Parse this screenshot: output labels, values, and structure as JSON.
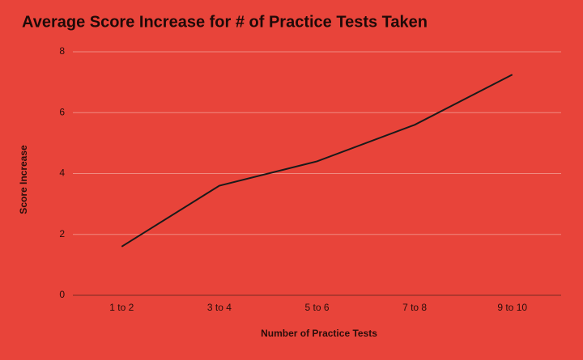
{
  "chart_data": {
    "type": "line",
    "title": "Average Score Increase for # of Practice Tests Taken",
    "x_label": "Number of Practice Tests",
    "y_label": "Score Increase",
    "categories": [
      "1 to 2",
      "3 to 4",
      "5 to 6",
      "7 to 8",
      "9 to 10"
    ],
    "values": [
      1.6,
      3.6,
      4.4,
      5.6,
      7.25
    ],
    "color": "#1a1a1a",
    "background": "#e8443a",
    "ylim": [
      0,
      8
    ],
    "yticks": [
      0,
      2,
      4,
      6,
      8
    ],
    "grid": true
  }
}
